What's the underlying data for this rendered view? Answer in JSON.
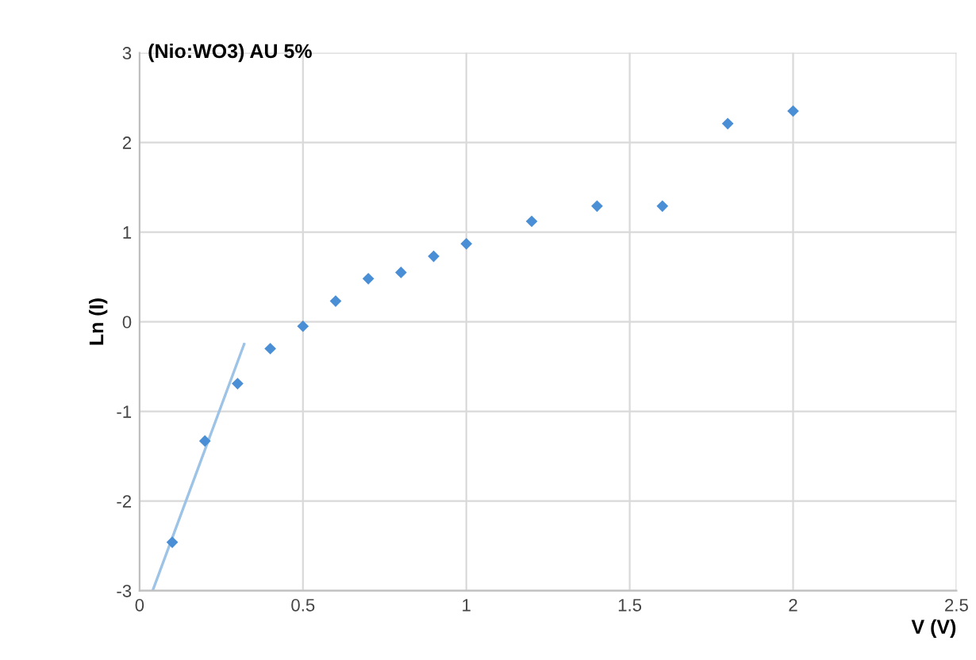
{
  "chart_data": {
    "type": "scatter",
    "title": "(Nio:WO3) AU 5%",
    "xlabel": "V (V)",
    "ylabel": "Ln (I)",
    "x": [
      0.1,
      0.2,
      0.3,
      0.4,
      0.5,
      0.6,
      0.7,
      0.8,
      0.9,
      1.0,
      1.2,
      1.4,
      1.6,
      1.8,
      2.0
    ],
    "series": [
      {
        "color": "#4a8fd6",
        "values": [
          -2.46,
          -1.33,
          -0.69,
          -0.3,
          -0.05,
          0.23,
          0.48,
          0.55,
          0.73,
          0.87,
          1.12,
          1.29,
          1.29,
          2.21,
          2.35
        ]
      },
      {
        "type": "line",
        "color": "#9dc3e6",
        "x": [
          0.04,
          0.32
        ],
        "values": [
          -3,
          -0.25
        ],
        "marker": "none"
      }
    ],
    "xlim": [
      0,
      2.5
    ],
    "ylim": [
      -3,
      3
    ],
    "xticks": [
      0,
      0.5,
      1,
      1.5,
      2,
      2.5
    ],
    "yticks": [
      -3,
      -2,
      -1,
      0,
      1,
      2,
      3
    ],
    "grid": true,
    "marker": "diamond"
  }
}
